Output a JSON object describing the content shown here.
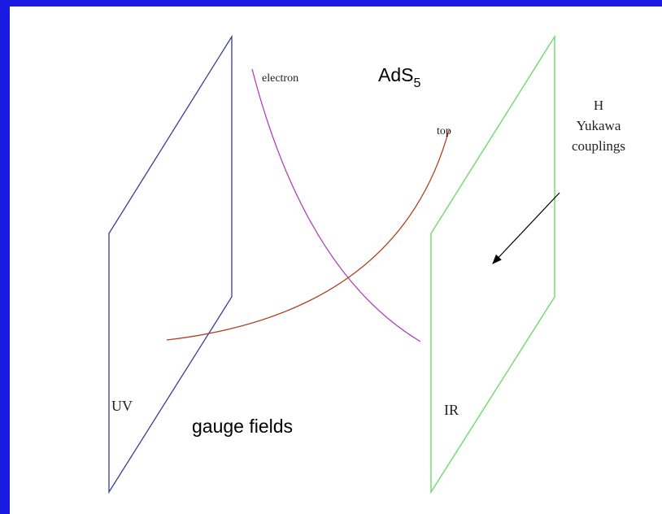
{
  "labels": {
    "electron": "electron",
    "ads": "AdS",
    "ads_sub": "5",
    "top": "top",
    "h": "H",
    "yukawa": "Yukawa",
    "couplings": "couplings",
    "uv": "UV",
    "ir": "IR",
    "gauge": "gauge fields"
  }
}
